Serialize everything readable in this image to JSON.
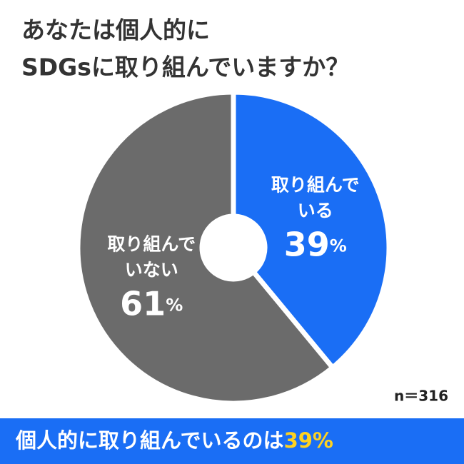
{
  "chart_data": {
    "type": "donut",
    "title": [
      "あなたは個人的に",
      "SDGsに取り組んでいますか？"
    ],
    "categories": [
      "取り組んでいる",
      "取り組んでいない"
    ],
    "values": [
      39,
      61
    ],
    "value_labels": [
      "39%",
      "61%"
    ],
    "colors": [
      "#1a6ef5",
      "#6b6b6b"
    ],
    "note": "n＝316",
    "footer": "個人的に取り組んでいるのは",
    "footer_highlight": "39%"
  }
}
